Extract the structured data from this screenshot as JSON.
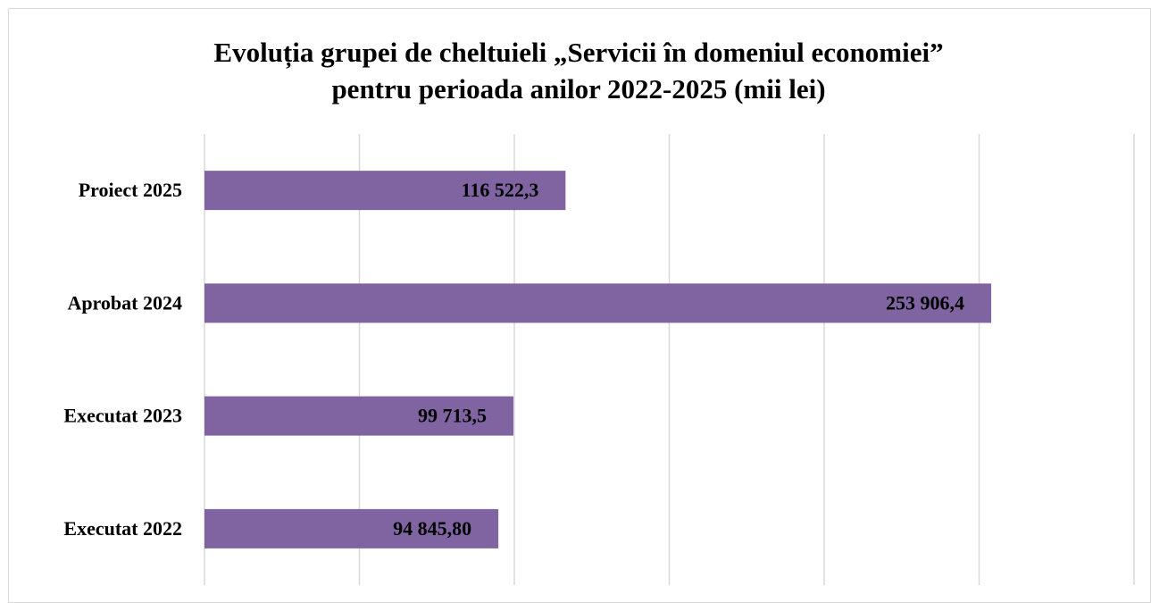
{
  "chart_data": {
    "type": "hbar",
    "title": [
      "Evoluția grupei de cheltuieli „Servicii în domeniul economiei”",
      "pentru perioada anilor 2022-2025 (mii lei)"
    ],
    "categories": [
      "Proiect 2025",
      "Aprobat 2024",
      "Executat 2023",
      "Executat 2022"
    ],
    "values": [
      116522.3,
      253906.4,
      99713.5,
      94845.8
    ],
    "value_labels": [
      "116 522,3",
      "253 906,4",
      "99 713,5",
      "94 845,80"
    ],
    "color": "#8064a2",
    "xlim": [
      0,
      300000
    ],
    "xticks": [
      0,
      50000,
      100000,
      150000,
      200000,
      250000,
      300000
    ],
    "grid": true
  }
}
